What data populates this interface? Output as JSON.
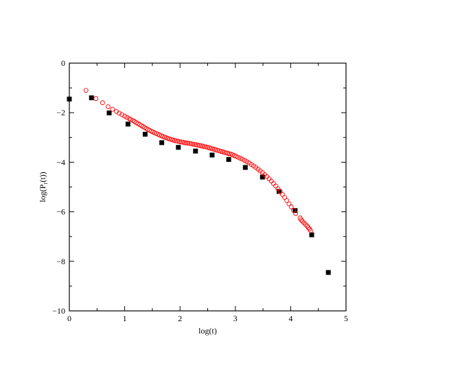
{
  "chart_data": {
    "type": "scatter",
    "title": "",
    "xlabel": "log(t)",
    "ylabel": "log(P",
    "ylabel_sub": "r",
    "ylabel_tail": "(t))",
    "xlim": [
      0,
      5
    ],
    "ylim": [
      -10,
      0
    ],
    "x_ticks": [
      0,
      1,
      2,
      3,
      4,
      5
    ],
    "y_ticks": [
      0,
      -2,
      -4,
      -6,
      -8,
      -10
    ],
    "x_tick_labels": [
      "0",
      "1",
      "2",
      "3",
      "4",
      "5"
    ],
    "y_tick_labels": [
      "0",
      "−2",
      "−4",
      "−6",
      "−8",
      "−10"
    ],
    "grid": false,
    "series": [
      {
        "marker": "filled-square",
        "color": "#000000",
        "x": [
          0.0,
          0.4,
          0.72,
          1.06,
          1.37,
          1.67,
          1.97,
          2.28,
          2.58,
          2.88,
          3.18,
          3.49,
          3.79,
          4.08,
          4.38,
          4.68
        ],
        "y": [
          -1.45,
          -1.4,
          -2.01,
          -2.46,
          -2.87,
          -3.21,
          -3.4,
          -3.55,
          -3.71,
          -3.89,
          -4.21,
          -4.6,
          -5.18,
          -5.95,
          -6.93,
          -8.45
        ]
      },
      {
        "marker": "open-circle",
        "color": "#ff0000",
        "x": [
          0.3,
          0.48,
          0.6,
          0.7,
          0.78,
          0.85,
          0.9,
          0.95,
          1.0,
          1.04,
          1.08,
          1.11,
          1.15,
          1.18,
          1.21,
          1.24,
          1.27,
          1.3,
          1.33,
          1.36,
          1.39,
          1.42,
          1.45,
          1.48,
          1.51,
          1.54,
          1.57,
          1.6,
          1.63,
          1.66,
          1.69,
          1.72,
          1.75,
          1.78,
          1.81,
          1.84,
          1.87,
          1.9,
          1.93,
          1.96,
          1.99,
          2.02,
          2.05,
          2.08,
          2.11,
          2.14,
          2.17,
          2.2,
          2.23,
          2.26,
          2.29,
          2.32,
          2.35,
          2.38,
          2.41,
          2.44,
          2.47,
          2.5,
          2.53,
          2.56,
          2.59,
          2.62,
          2.65,
          2.68,
          2.71,
          2.74,
          2.77,
          2.8,
          2.83,
          2.86,
          2.89,
          2.92,
          2.95,
          2.98,
          3.01,
          3.05,
          3.09,
          3.13,
          3.17,
          3.21,
          3.25,
          3.29,
          3.33,
          3.37,
          3.41,
          3.45,
          3.49,
          3.53,
          3.57,
          3.61,
          3.65,
          3.69,
          3.73,
          3.77,
          3.81,
          3.85,
          3.89,
          3.93,
          3.97,
          4.01,
          4.05,
          4.09,
          4.17,
          4.19,
          4.21,
          4.24,
          4.27,
          4.3,
          4.32,
          4.34,
          4.36
        ],
        "y": [
          -1.1,
          -1.43,
          -1.6,
          -1.76,
          -1.86,
          -1.95,
          -2.02,
          -2.08,
          -2.14,
          -2.19,
          -2.24,
          -2.28,
          -2.32,
          -2.36,
          -2.4,
          -2.44,
          -2.48,
          -2.52,
          -2.56,
          -2.6,
          -2.64,
          -2.68,
          -2.71,
          -2.75,
          -2.78,
          -2.81,
          -2.84,
          -2.87,
          -2.9,
          -2.93,
          -2.96,
          -2.99,
          -3.01,
          -3.04,
          -3.06,
          -3.08,
          -3.1,
          -3.12,
          -3.14,
          -3.15,
          -3.17,
          -3.18,
          -3.19,
          -3.21,
          -3.22,
          -3.23,
          -3.24,
          -3.25,
          -3.27,
          -3.28,
          -3.29,
          -3.31,
          -3.32,
          -3.34,
          -3.35,
          -3.37,
          -3.38,
          -3.4,
          -3.42,
          -3.44,
          -3.46,
          -3.48,
          -3.5,
          -3.52,
          -3.54,
          -3.56,
          -3.58,
          -3.6,
          -3.62,
          -3.64,
          -3.66,
          -3.68,
          -3.7,
          -3.73,
          -3.76,
          -3.8,
          -3.84,
          -3.88,
          -3.93,
          -3.98,
          -4.03,
          -4.09,
          -4.15,
          -4.21,
          -4.28,
          -4.35,
          -4.42,
          -4.5,
          -4.58,
          -4.67,
          -4.76,
          -4.86,
          -4.96,
          -5.07,
          -5.18,
          -5.3,
          -5.42,
          -5.55,
          -5.68,
          -5.8,
          -5.94,
          -6.07,
          -6.25,
          -6.32,
          -6.38,
          -6.45,
          -6.52,
          -6.58,
          -6.64,
          -6.7,
          -6.76
        ]
      }
    ]
  }
}
